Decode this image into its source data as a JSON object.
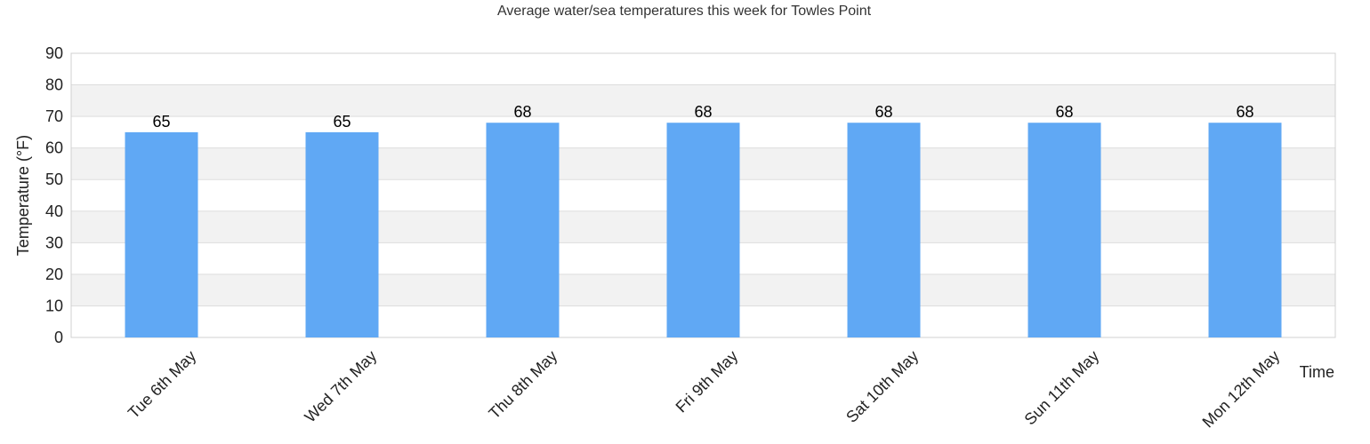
{
  "chart_data": {
    "type": "bar",
    "title": "Average water/sea temperatures this week for Towles Point",
    "xlabel": "Time",
    "ylabel": "Temperature (°F)",
    "categories": [
      "Tue 6th May",
      "Wed 7th May",
      "Thu 8th May",
      "Fri 9th May",
      "Sat 10th May",
      "Sun 11th May",
      "Mon 12th May"
    ],
    "values": [
      65,
      65,
      68,
      68,
      68,
      68,
      68
    ],
    "data_labels": [
      "65",
      "65",
      "68",
      "68",
      "68",
      "68",
      "68"
    ],
    "ylim": [
      0,
      90
    ],
    "yticks": [
      "0",
      "10",
      "20",
      "30",
      "40",
      "50",
      "60",
      "70",
      "80",
      "90"
    ],
    "grid": true,
    "legend": "none",
    "colors": {
      "bar": "#60a8f4",
      "band": "#f2f2f2",
      "grid": "#dddddd"
    }
  }
}
